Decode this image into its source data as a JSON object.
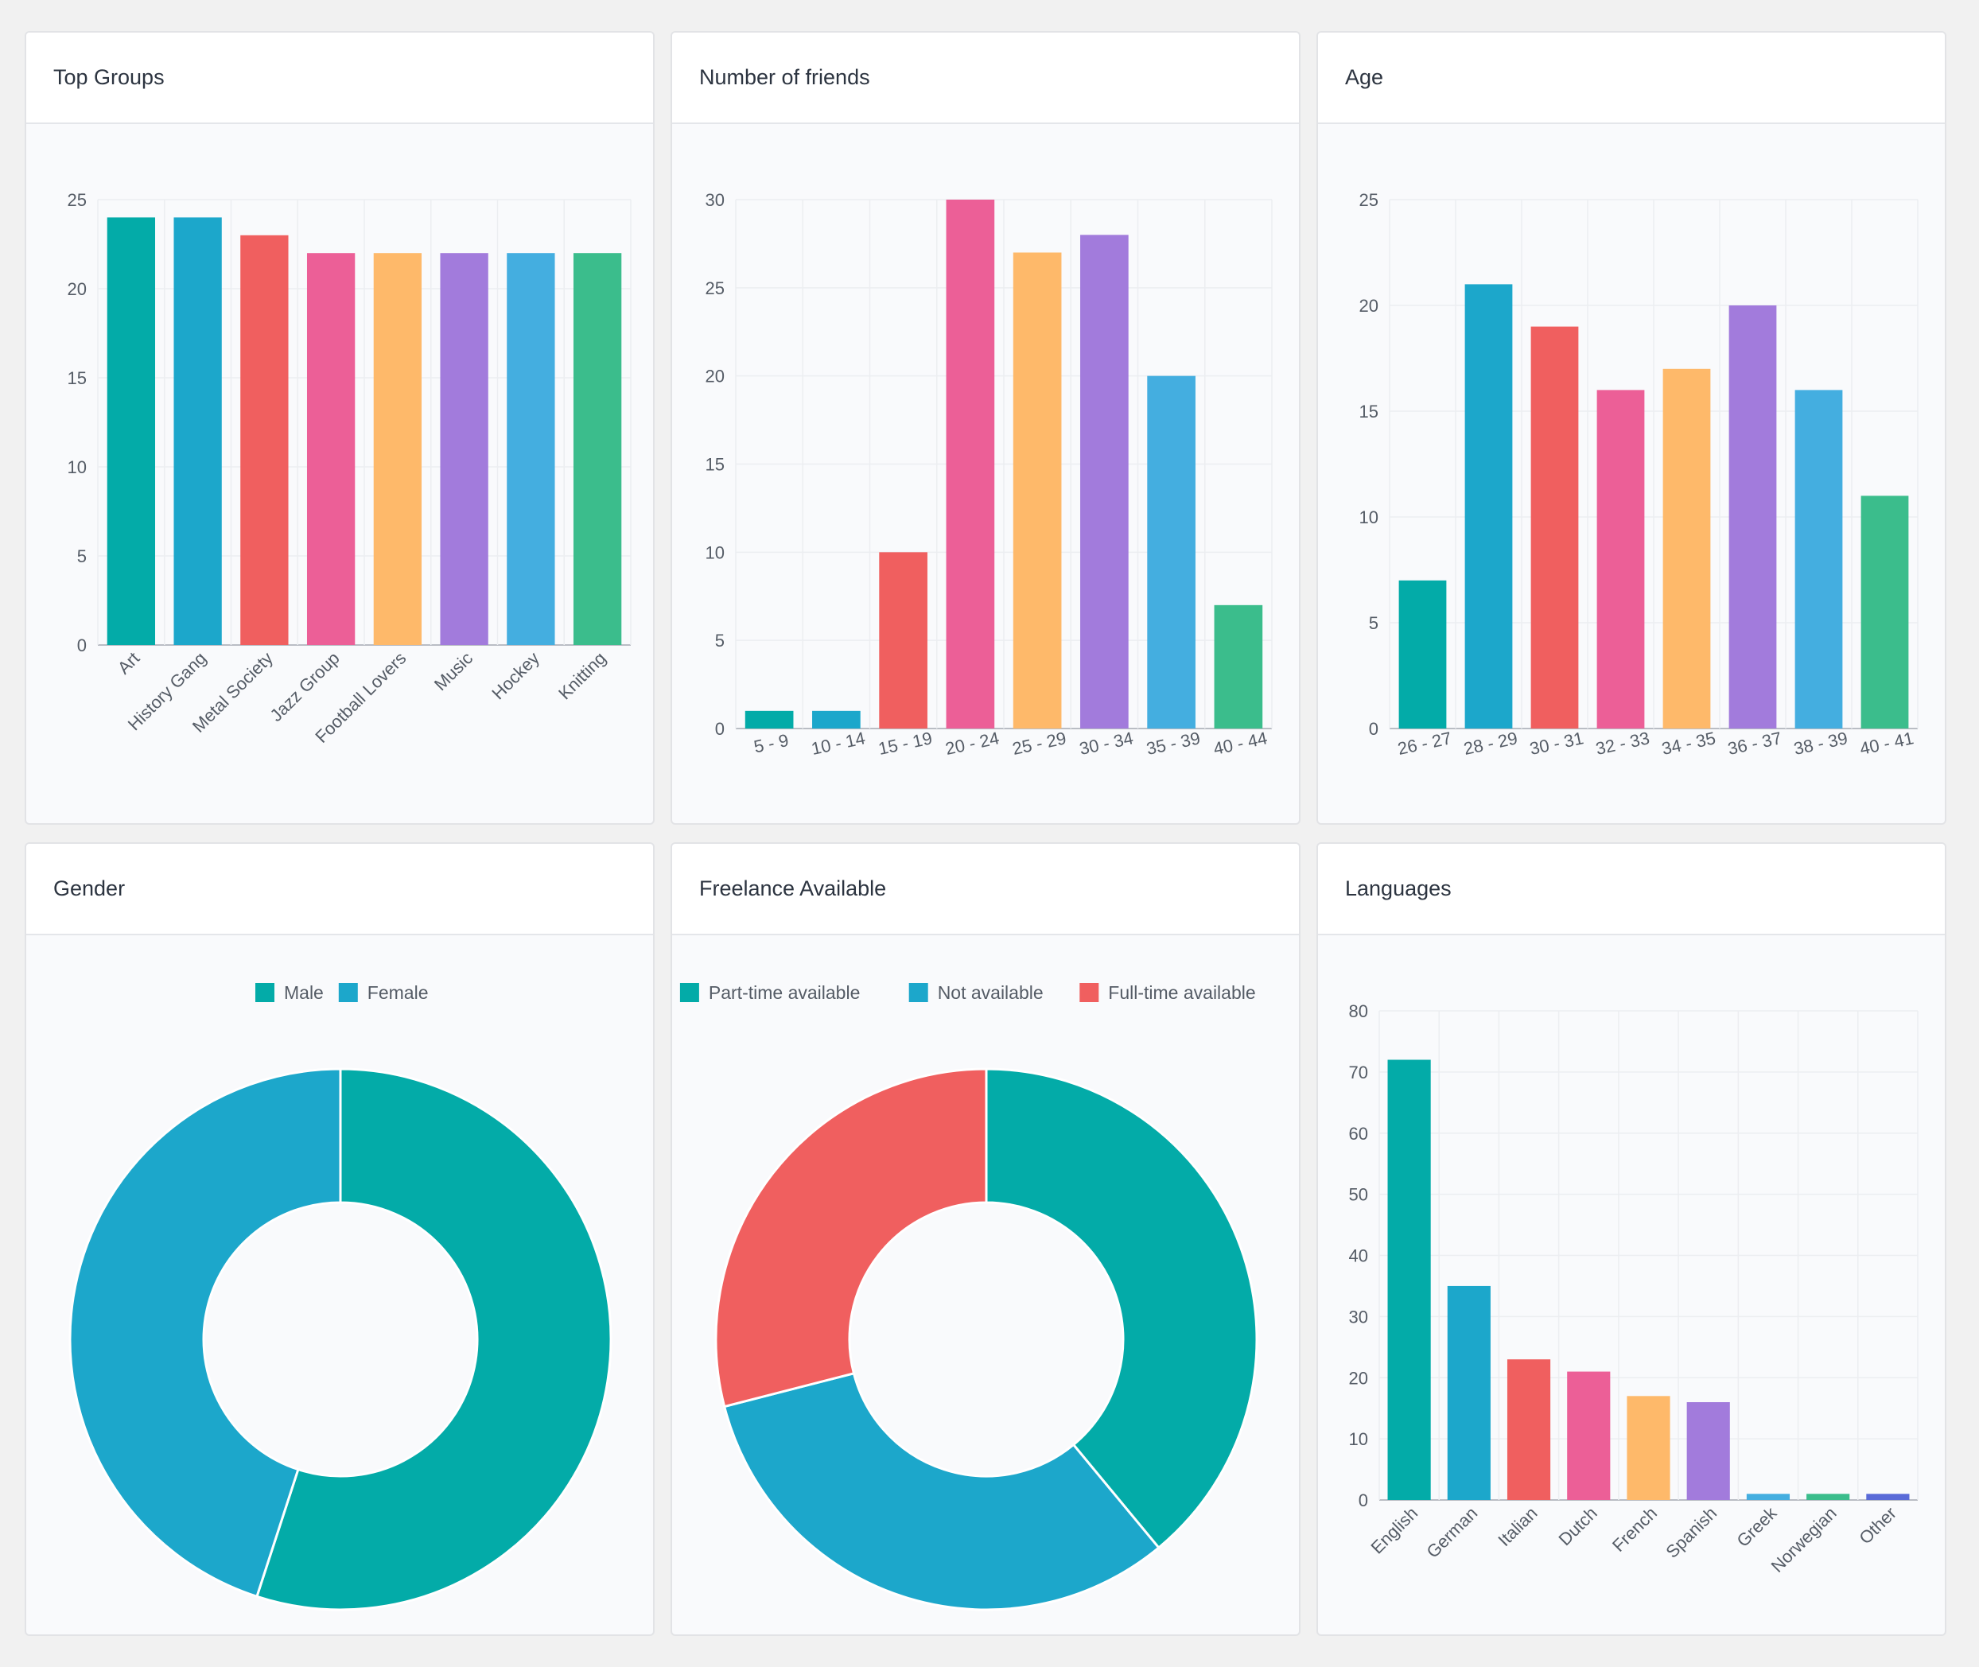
{
  "cards": [
    {
      "title": "Top Groups",
      "chart_data": {
        "type": "bar",
        "categories": [
          "Art",
          "History Gang",
          "Metal Society",
          "Jazz Group",
          "Football Lovers",
          "Music",
          "Hockey",
          "Knitting"
        ],
        "values": [
          24,
          24,
          23,
          22,
          22,
          22,
          22,
          22
        ],
        "ylim": [
          0,
          25
        ],
        "yticks": [
          0,
          5,
          10,
          15,
          20,
          25
        ],
        "xlabel": "",
        "ylabel": "",
        "label_rotation": -45,
        "grid": true,
        "colors": [
          "#03aba8",
          "#1ca7cb",
          "#f05f5f",
          "#ec5f97",
          "#feb96a",
          "#a27bdc",
          "#44aee0",
          "#3bbd8c"
        ]
      }
    },
    {
      "title": "Number of friends",
      "chart_data": {
        "type": "bar",
        "categories": [
          "5 - 9",
          "10 - 14",
          "15 - 19",
          "20 - 24",
          "25 - 29",
          "30 - 34",
          "35 - 39",
          "40 - 44"
        ],
        "values": [
          1,
          1,
          10,
          30,
          27,
          28,
          20,
          7
        ],
        "ylim": [
          0,
          30
        ],
        "yticks": [
          0,
          5,
          10,
          15,
          20,
          25,
          30
        ],
        "xlabel": "",
        "ylabel": "",
        "label_rotation": -12,
        "grid": true,
        "colors": [
          "#03aba8",
          "#1ca7cb",
          "#f05f5f",
          "#ec5f97",
          "#feb96a",
          "#a27bdc",
          "#44aee0",
          "#3bbd8c"
        ]
      }
    },
    {
      "title": "Age",
      "chart_data": {
        "type": "bar",
        "categories": [
          "26 - 27",
          "28 - 29",
          "30 - 31",
          "32 - 33",
          "34 - 35",
          "36 - 37",
          "38 - 39",
          "40 - 41"
        ],
        "values": [
          7,
          21,
          19,
          16,
          17,
          20,
          16,
          11
        ],
        "ylim": [
          0,
          25
        ],
        "yticks": [
          0,
          5,
          10,
          15,
          20,
          25
        ],
        "xlabel": "",
        "ylabel": "",
        "label_rotation": -12,
        "grid": true,
        "colors": [
          "#03aba8",
          "#1ca7cb",
          "#f05f5f",
          "#ec5f97",
          "#feb96a",
          "#a27bdc",
          "#44aee0",
          "#3bbd8c"
        ]
      }
    },
    {
      "title": "Gender",
      "chart_data": {
        "type": "pie",
        "donut": true,
        "labels": [
          "Male",
          "Female"
        ],
        "values": [
          55,
          45
        ],
        "legend": "top",
        "colors": [
          "#03aba8",
          "#1ca7cb"
        ]
      }
    },
    {
      "title": "Freelance Available",
      "chart_data": {
        "type": "pie",
        "donut": true,
        "labels": [
          "Part-time available",
          "Not available",
          "Full-time available"
        ],
        "values": [
          39,
          32,
          29
        ],
        "legend": "top",
        "colors": [
          "#03aba8",
          "#1ca7cb",
          "#f05f5f"
        ]
      }
    },
    {
      "title": "Languages",
      "chart_data": {
        "type": "bar",
        "categories": [
          "English",
          "German",
          "Italian",
          "Dutch",
          "French",
          "Spanish",
          "Greek",
          "Norwegian",
          "Other"
        ],
        "values": [
          72,
          35,
          23,
          21,
          17,
          16,
          1,
          1,
          1
        ],
        "ylim": [
          0,
          80
        ],
        "yticks": [
          0,
          10,
          20,
          30,
          40,
          50,
          60,
          70,
          80
        ],
        "xlabel": "",
        "ylabel": "",
        "label_rotation": -45,
        "grid": true,
        "colors": [
          "#03aba8",
          "#1ca7cb",
          "#f05f5f",
          "#ec5f97",
          "#feb96a",
          "#a27bdc",
          "#44aee0",
          "#3bbd8c",
          "#5a6bd8"
        ]
      }
    }
  ]
}
